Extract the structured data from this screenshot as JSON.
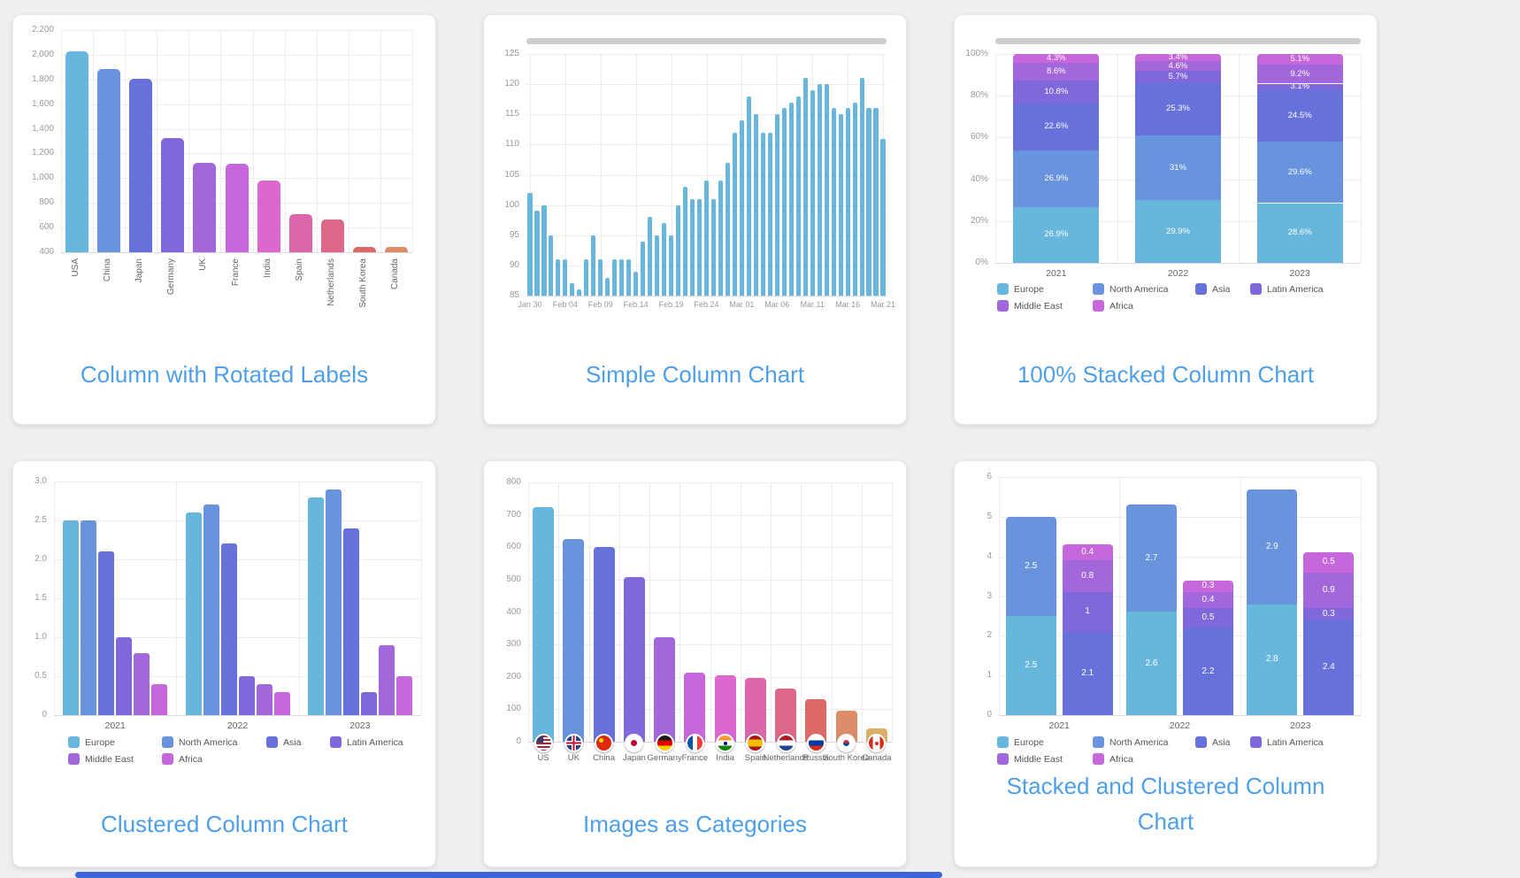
{
  "accent_color": "#4d9fe8",
  "palette": [
    "#67B7DC",
    "#6794DC",
    "#6771DC",
    "#8067DC",
    "#A367DC",
    "#C767DC",
    "#DC67CE",
    "#DC67AB",
    "#DC6788",
    "#DC6967",
    "#DC8C67",
    "#DCAF67"
  ],
  "region_series_colors": {
    "Europe": "#67B7DC",
    "North America": "#6794DC",
    "Asia": "#6771DC",
    "Latin America": "#8067DC",
    "Middle East": "#A367DC",
    "Africa": "#C767DC"
  },
  "cards": [
    {
      "title": "Column with Rotated Labels"
    },
    {
      "title": "Simple Column Chart"
    },
    {
      "title": "100% Stacked Column Chart"
    },
    {
      "title": "Clustered Column Chart"
    },
    {
      "title": "Images as Categories"
    },
    {
      "title": "Stacked and Clustered Column Chart"
    }
  ],
  "chart_data": [
    {
      "type": "bar",
      "title": "Column with Rotated Labels",
      "categories": [
        "USA",
        "China",
        "Japan",
        "Germany",
        "UK",
        "France",
        "India",
        "Spain",
        "Netherlands",
        "South Korea",
        "Canada"
      ],
      "values": [
        2025,
        1882,
        1809,
        1322,
        1122,
        1114,
        984,
        711,
        665,
        443,
        441
      ],
      "ylim": [
        400,
        2200
      ],
      "ytick_labels": [
        "400",
        "600",
        "800",
        "1,000",
        "1,200",
        "1,400",
        "1,600",
        "1,800",
        "2,000",
        "2,200"
      ],
      "grid": true,
      "rotated_labels": true
    },
    {
      "type": "bar",
      "title": "Simple Column Chart",
      "x_tick_labels": [
        "Jan 30",
        "Feb 04",
        "Feb 09",
        "Feb 14",
        "Feb 19",
        "Feb 24",
        "Mar 01",
        "Mar 06",
        "Mar 11",
        "Mar 16",
        "Mar 21"
      ],
      "values": [
        102,
        99,
        100,
        95,
        91,
        91,
        87,
        86,
        91,
        95,
        91,
        88,
        91,
        91,
        91,
        89,
        94,
        98,
        95,
        97,
        95,
        100,
        103,
        101,
        101,
        104,
        101,
        104,
        107,
        112,
        114,
        118,
        115,
        112,
        112,
        115,
        116,
        117,
        118,
        121,
        119,
        120,
        120,
        116,
        115,
        116,
        117,
        121,
        116,
        116,
        111
      ],
      "ylim": [
        85,
        125
      ],
      "ytick_labels": [
        "85",
        "90",
        "95",
        "100",
        "105",
        "110",
        "115",
        "120",
        "125"
      ],
      "bar_color": "#67B7DC",
      "scrollbar": true,
      "grid": true
    },
    {
      "type": "stacked-bar-100",
      "title": "100% Stacked Column Chart",
      "categories": [
        "2021",
        "2022",
        "2023"
      ],
      "series": [
        {
          "name": "Europe",
          "color": "#67B7DC",
          "values": [
            26.9,
            29.9,
            28.6
          ],
          "labels": [
            "26.9%",
            "29.9%",
            "28.6%"
          ]
        },
        {
          "name": "North America",
          "color": "#6794DC",
          "values": [
            26.9,
            31,
            29.6
          ],
          "labels": [
            "26.9%",
            "31%",
            "29.6%"
          ]
        },
        {
          "name": "Asia",
          "color": "#6771DC",
          "values": [
            22.6,
            25.3,
            24.5
          ],
          "labels": [
            "22.6%",
            "25.3%",
            "24.5%"
          ]
        },
        {
          "name": "Latin America",
          "color": "#8067DC",
          "values": [
            10.8,
            5.7,
            3.1
          ],
          "labels": [
            "10.8%",
            "5.7%",
            "3.1%"
          ]
        },
        {
          "name": "Middle East",
          "color": "#A367DC",
          "values": [
            8.6,
            4.6,
            9.2
          ],
          "labels": [
            "8.6%",
            "4.6%",
            "9.2%"
          ]
        },
        {
          "name": "Africa",
          "color": "#C767DC",
          "values": [
            4.3,
            3.4,
            5.1
          ],
          "labels": [
            "4.3%",
            "3.4%",
            "5.1%"
          ]
        }
      ],
      "ylim": [
        0,
        100
      ],
      "ytick_labels": [
        "0%",
        "20%",
        "40%",
        "60%",
        "80%",
        "100%"
      ],
      "scrollbar": true,
      "legend": [
        "Europe",
        "North America",
        "Asia",
        "Latin America",
        "Middle East",
        "Africa"
      ],
      "legend_position": "bottom"
    },
    {
      "type": "clustered-bar",
      "title": "Clustered Column Chart",
      "categories": [
        "2021",
        "2022",
        "2023"
      ],
      "series": [
        {
          "name": "Europe",
          "color": "#67B7DC",
          "values": [
            2.5,
            2.6,
            2.8
          ]
        },
        {
          "name": "North America",
          "color": "#6794DC",
          "values": [
            2.5,
            2.7,
            2.9
          ]
        },
        {
          "name": "Asia",
          "color": "#6771DC",
          "values": [
            2.1,
            2.2,
            2.4
          ]
        },
        {
          "name": "Latin America",
          "color": "#8067DC",
          "values": [
            1.0,
            0.5,
            0.3
          ]
        },
        {
          "name": "Middle East",
          "color": "#A367DC",
          "values": [
            0.8,
            0.4,
            0.9
          ]
        },
        {
          "name": "Africa",
          "color": "#C767DC",
          "values": [
            0.4,
            0.3,
            0.5
          ]
        }
      ],
      "ylim": [
        0,
        3
      ],
      "ytick_labels": [
        "0",
        "0.5",
        "1.0",
        "1.5",
        "2.0",
        "2.5",
        "3.0"
      ],
      "legend": [
        "Europe",
        "North America",
        "Asia",
        "Latin America",
        "Middle East",
        "Africa"
      ],
      "legend_position": "bottom"
    },
    {
      "type": "bar",
      "title": "Images as Categories",
      "categories": [
        "US",
        "UK",
        "China",
        "Japan",
        "Germany",
        "France",
        "India",
        "Spain",
        "Netherlands",
        "Russia",
        "South Korea",
        "Canada"
      ],
      "flags": [
        "us",
        "uk",
        "china",
        "japan",
        "germany",
        "france",
        "india",
        "spain",
        "netherlands",
        "russia",
        "south-korea",
        "canada"
      ],
      "values": [
        725,
        625,
        602,
        509,
        322,
        214,
        204,
        198,
        165,
        130,
        95,
        40
      ],
      "ylim": [
        0,
        800
      ],
      "ytick_labels": [
        "0",
        "100",
        "200",
        "300",
        "400",
        "500",
        "600",
        "700",
        "800"
      ],
      "grid": true
    },
    {
      "type": "stacked-clustered-bar",
      "title": "Stacked and Clustered Column Chart",
      "categories": [
        "2021",
        "2022",
        "2023"
      ],
      "stacks": [
        {
          "series": [
            {
              "name": "Europe",
              "color": "#67B7DC",
              "values": [
                2.5,
                2.6,
                2.8
              ]
            },
            {
              "name": "North America",
              "color": "#6794DC",
              "values": [
                2.5,
                2.7,
                2.9
              ]
            }
          ]
        },
        {
          "series": [
            {
              "name": "Asia",
              "color": "#6771DC",
              "values": [
                2.1,
                2.2,
                2.4
              ]
            },
            {
              "name": "Latin America",
              "color": "#8067DC",
              "values": [
                1,
                0.5,
                0.3
              ]
            },
            {
              "name": "Middle East",
              "color": "#A367DC",
              "values": [
                0.8,
                0.4,
                0.9
              ]
            },
            {
              "name": "Africa",
              "color": "#C767DC",
              "values": [
                0.4,
                0.3,
                0.5
              ]
            }
          ]
        }
      ],
      "ylim": [
        0,
        6
      ],
      "ytick_labels": [
        "0",
        "1",
        "2",
        "3",
        "4",
        "5",
        "6"
      ],
      "legend": [
        "Europe",
        "North America",
        "Asia",
        "Latin America",
        "Middle East",
        "Africa"
      ],
      "legend_position": "bottom"
    }
  ]
}
